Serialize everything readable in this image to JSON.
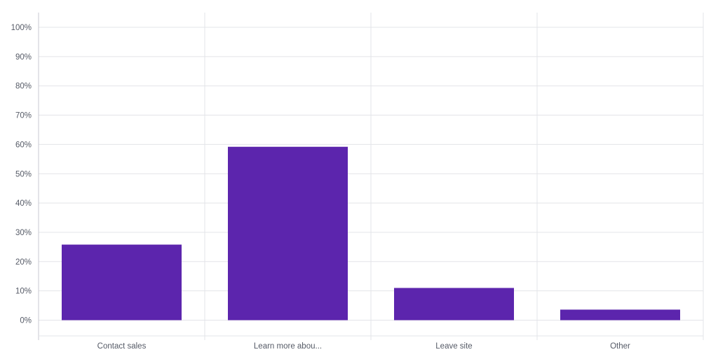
{
  "chart_data": {
    "type": "bar",
    "categories": [
      "Contact sales",
      "Learn more abou...",
      "Leave site",
      "Other"
    ],
    "values": [
      25.8,
      59.2,
      11.0,
      3.6
    ],
    "ylim": [
      0,
      100
    ],
    "yticks": [
      0,
      10,
      20,
      30,
      40,
      50,
      60,
      70,
      80,
      90,
      100
    ],
    "ytick_labels": [
      "0%",
      "10%",
      "20%",
      "30%",
      "40%",
      "50%",
      "60%",
      "70%",
      "80%",
      "90%",
      "100%"
    ],
    "grid": true,
    "legend": "none",
    "colors": {
      "bar": "#5c25ad",
      "grid": "#e3e4e8",
      "axis": "#c9cad1",
      "text": "#555a66"
    }
  }
}
